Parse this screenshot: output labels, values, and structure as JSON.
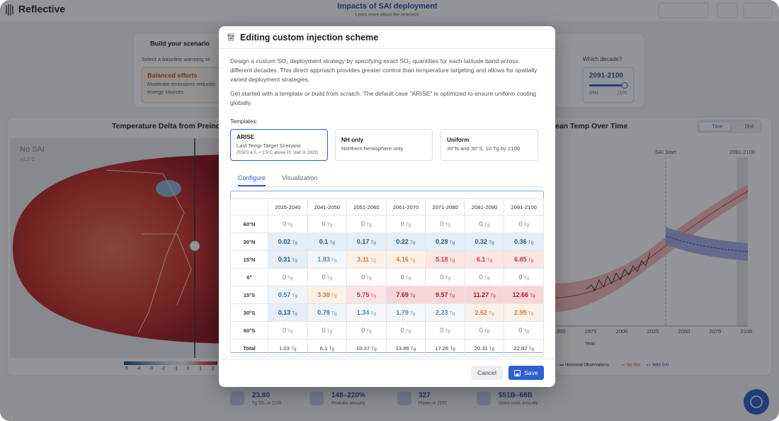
{
  "header": {
    "logo": "Reflective",
    "title": "Impacts of SAI deployment",
    "subtitle": "Learn more about the simulator"
  },
  "scenario": {
    "heading": "Build your scenario",
    "prompt": "Select a baseline warming sc",
    "option_title": "Balanced efforts",
    "option_text": [
      "Moderate emissions reductio",
      "energy sources"
    ],
    "decade_label": "Which decade?",
    "decade": "2091-2100",
    "slider_min": "2041",
    "slider_max": "2100"
  },
  "map": {
    "title": "Temperature Delta from Preind",
    "label": "No SAI",
    "delta": "+3.3°C",
    "colorbar_ticks": [
      -5,
      -4,
      -3,
      -2,
      -1,
      0,
      1,
      2
    ]
  },
  "timeseries": {
    "title": "ean Temp Over Time",
    "toggles": [
      "Time",
      "Dist"
    ],
    "annotations": [
      "SAI Start",
      "2091-2100"
    ],
    "xticks": [
      "1950",
      "1975",
      "2000",
      "2025",
      "2050",
      "2075",
      "2100"
    ],
    "xlabel": "Year",
    "legend": [
      "Historical Observations",
      "No SAI",
      "With SAI"
    ]
  },
  "stats": [
    {
      "value": "23.80",
      "label": "Tg SO₂ in 2100"
    },
    {
      "value": "148–220%",
      "label": "Pinatubo annually"
    },
    {
      "value": "327",
      "label": "Planes in 2100"
    },
    {
      "value": "$51B–68B",
      "label": "Direct costs annually"
    }
  ],
  "modal": {
    "title": "Editing custom injection scheme",
    "description": [
      "Design a custom SO₂ deployment strategy by specifying exact SO₂ quantities for each latitude band across different decades. This direct approach provides greater control than temperature targeting and allows for spatially varied deployment strategies.",
      "Get started with a template or build from scratch. The default case \"ARISE\" is optimized to ensure uniform cooling globally."
    ],
    "templates_label": "Templates:",
    "templates": [
      {
        "name": "ARISE",
        "subtitle": "Last Temp-Target Scenario",
        "note": "(SSP2-4.5, < 1.5°C above PI, start in 2035)"
      },
      {
        "name": "NH only",
        "subtitle": "Northern hemisphere only"
      },
      {
        "name": "Uniform",
        "subtitle": "30°N and 30°S, 10 Tg by 2100"
      }
    ],
    "tabs": [
      "Configure",
      "Visualization"
    ],
    "table": {
      "columns": [
        "2035-2040",
        "2041-2050",
        "2051-2060",
        "2061-2070",
        "2071-2080",
        "2081-2090",
        "2091-2100"
      ],
      "unit": "Tg",
      "rows": [
        {
          "label": "60°N",
          "values": [
            0,
            0,
            0,
            0,
            0,
            0,
            0
          ]
        },
        {
          "label": "30°N",
          "values": [
            0.02,
            0.1,
            0.17,
            0.22,
            0.28,
            0.32,
            0.36
          ]
        },
        {
          "label": "15°N",
          "values": [
            0.31,
            1.83,
            3.11,
            4.16,
            5.18,
            6.1,
            6.85
          ]
        },
        {
          "label": "0°",
          "values": [
            0,
            0,
            0,
            0,
            0,
            0,
            0
          ]
        },
        {
          "label": "15°S",
          "values": [
            0.57,
            3.38,
            5.75,
            7.69,
            9.57,
            11.27,
            12.66
          ]
        },
        {
          "label": "30°S",
          "values": [
            0.13,
            0.79,
            1.34,
            1.79,
            2.23,
            2.62,
            2.95
          ]
        },
        {
          "label": "60°S",
          "values": [
            0,
            0,
            0,
            0,
            0,
            0,
            0
          ]
        },
        {
          "label": "Total",
          "values": [
            1.03,
            6.1,
            10.37,
            13.86,
            17.26,
            20.31,
            22.82
          ]
        }
      ]
    },
    "buttons": [
      "Cancel",
      "Save"
    ]
  }
}
